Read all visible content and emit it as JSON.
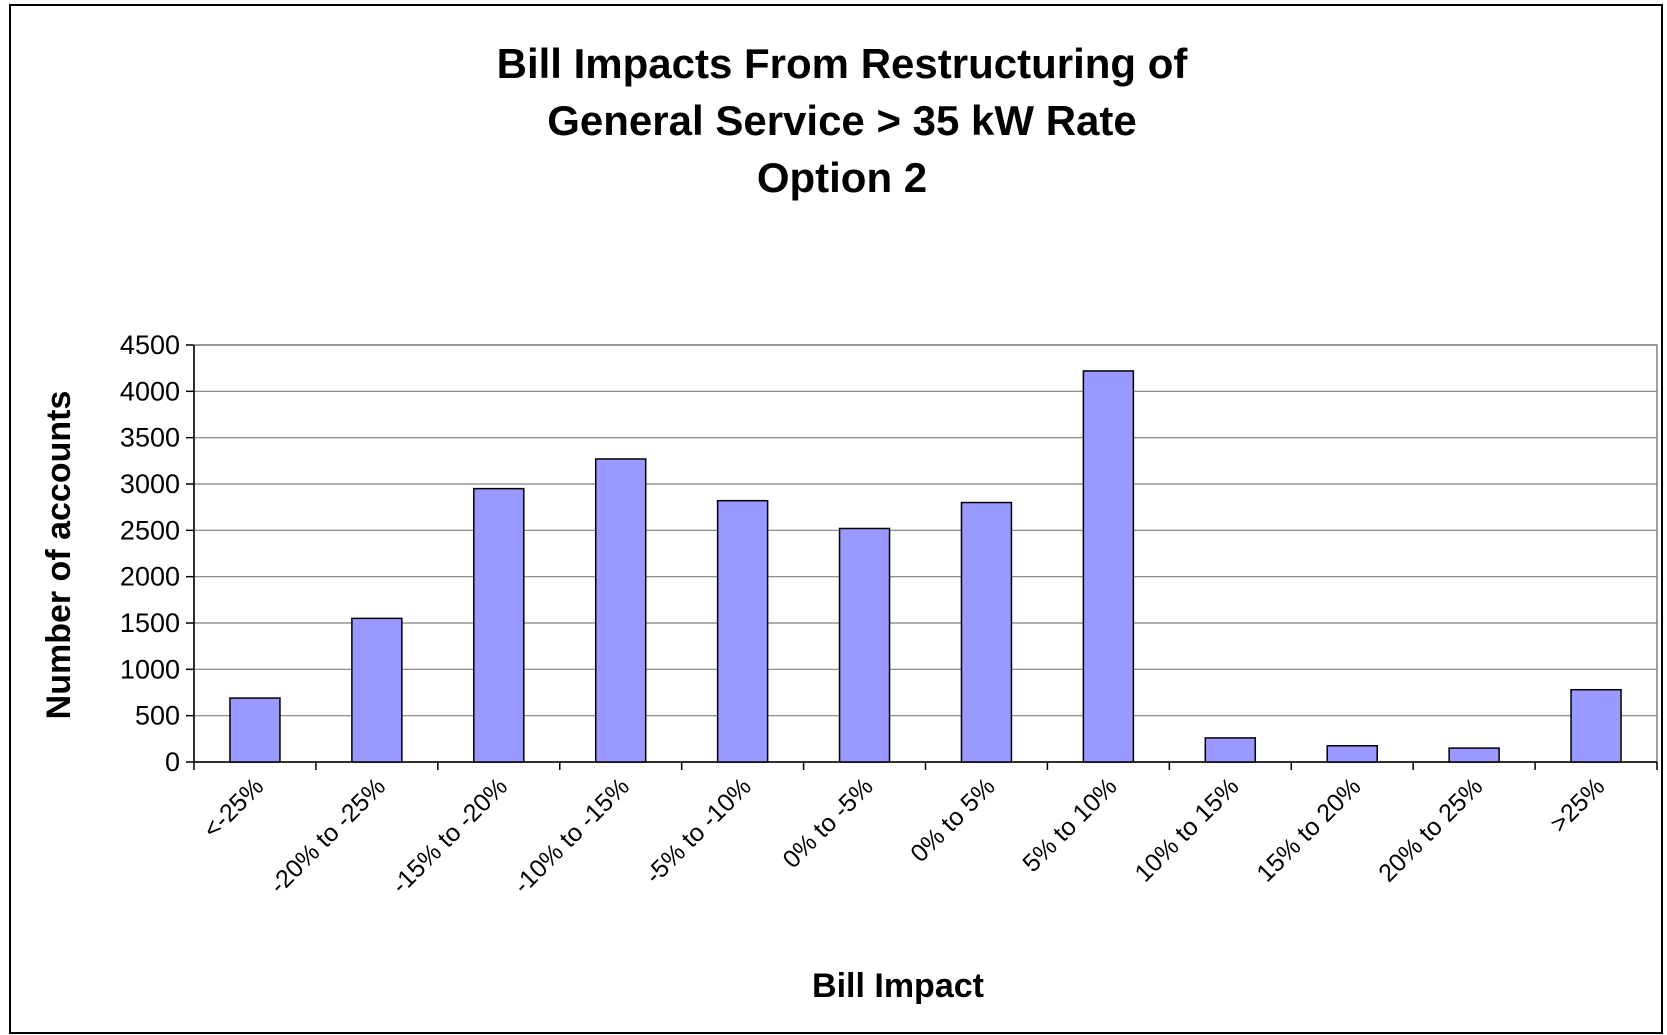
{
  "chart_data": {
    "type": "bar",
    "title": [
      "Bill Impacts From Restructuring of",
      "General Service > 35 kW Rate",
      "Option 2"
    ],
    "xlabel": "Bill Impact",
    "ylabel": "Number of accounts",
    "ylim": [
      0,
      4500
    ],
    "yticks": [
      0,
      500,
      1000,
      1500,
      2000,
      2500,
      3000,
      3500,
      4000,
      4500
    ],
    "grid": true,
    "legend": "none",
    "categories": [
      "<-25%",
      "-20% to -25%",
      "-15% to -20%",
      "-10% to -15%",
      "-5% to -10%",
      "0% to -5%",
      "0% to 5%",
      "5% to 10%",
      "10% to 15%",
      "15% to 20%",
      "20% to 25%",
      ">25%"
    ],
    "values": [
      690,
      1550,
      2950,
      3270,
      2820,
      2520,
      2800,
      4220,
      260,
      175,
      150,
      780
    ],
    "colors": {
      "bar_fill": "#9999FF",
      "bar_stroke": "#000000",
      "grid": "#808080",
      "frame": "#000000"
    }
  }
}
